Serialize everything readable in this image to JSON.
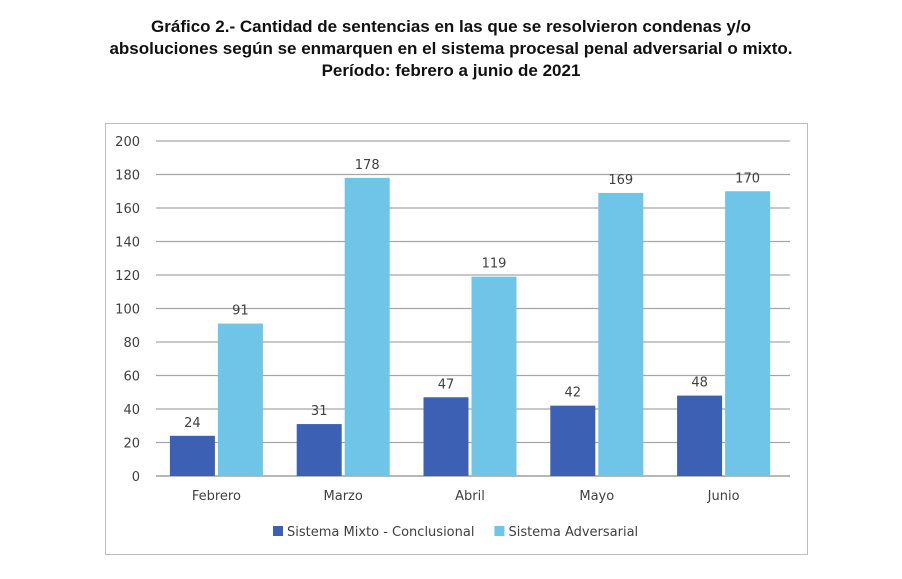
{
  "chart_data": {
    "type": "bar",
    "title_lines": [
      "Gráfico 2.- Cantidad de sentencias en las que se resolvieron condenas y/o",
      "absoluciones según se enmarquen en el sistema procesal penal adversarial o mixto.",
      "Período: febrero a junio de 2021"
    ],
    "categories": [
      "Febrero",
      "Marzo",
      "Abril",
      "Mayo",
      "Junio"
    ],
    "series": [
      {
        "name": "Sistema Mixto - Conclusional",
        "values": [
          24,
          31,
          47,
          42,
          48
        ],
        "color": "#3B60B4"
      },
      {
        "name": "Sistema Adversarial",
        "values": [
          91,
          178,
          119,
          169,
          170
        ],
        "color": "#6EC5E8"
      }
    ],
    "ylim": [
      0,
      200
    ],
    "yticks": [
      0,
      20,
      40,
      60,
      80,
      100,
      120,
      140,
      160,
      180,
      200
    ],
    "grid": true,
    "legend": "bottom",
    "data_labels": true
  }
}
